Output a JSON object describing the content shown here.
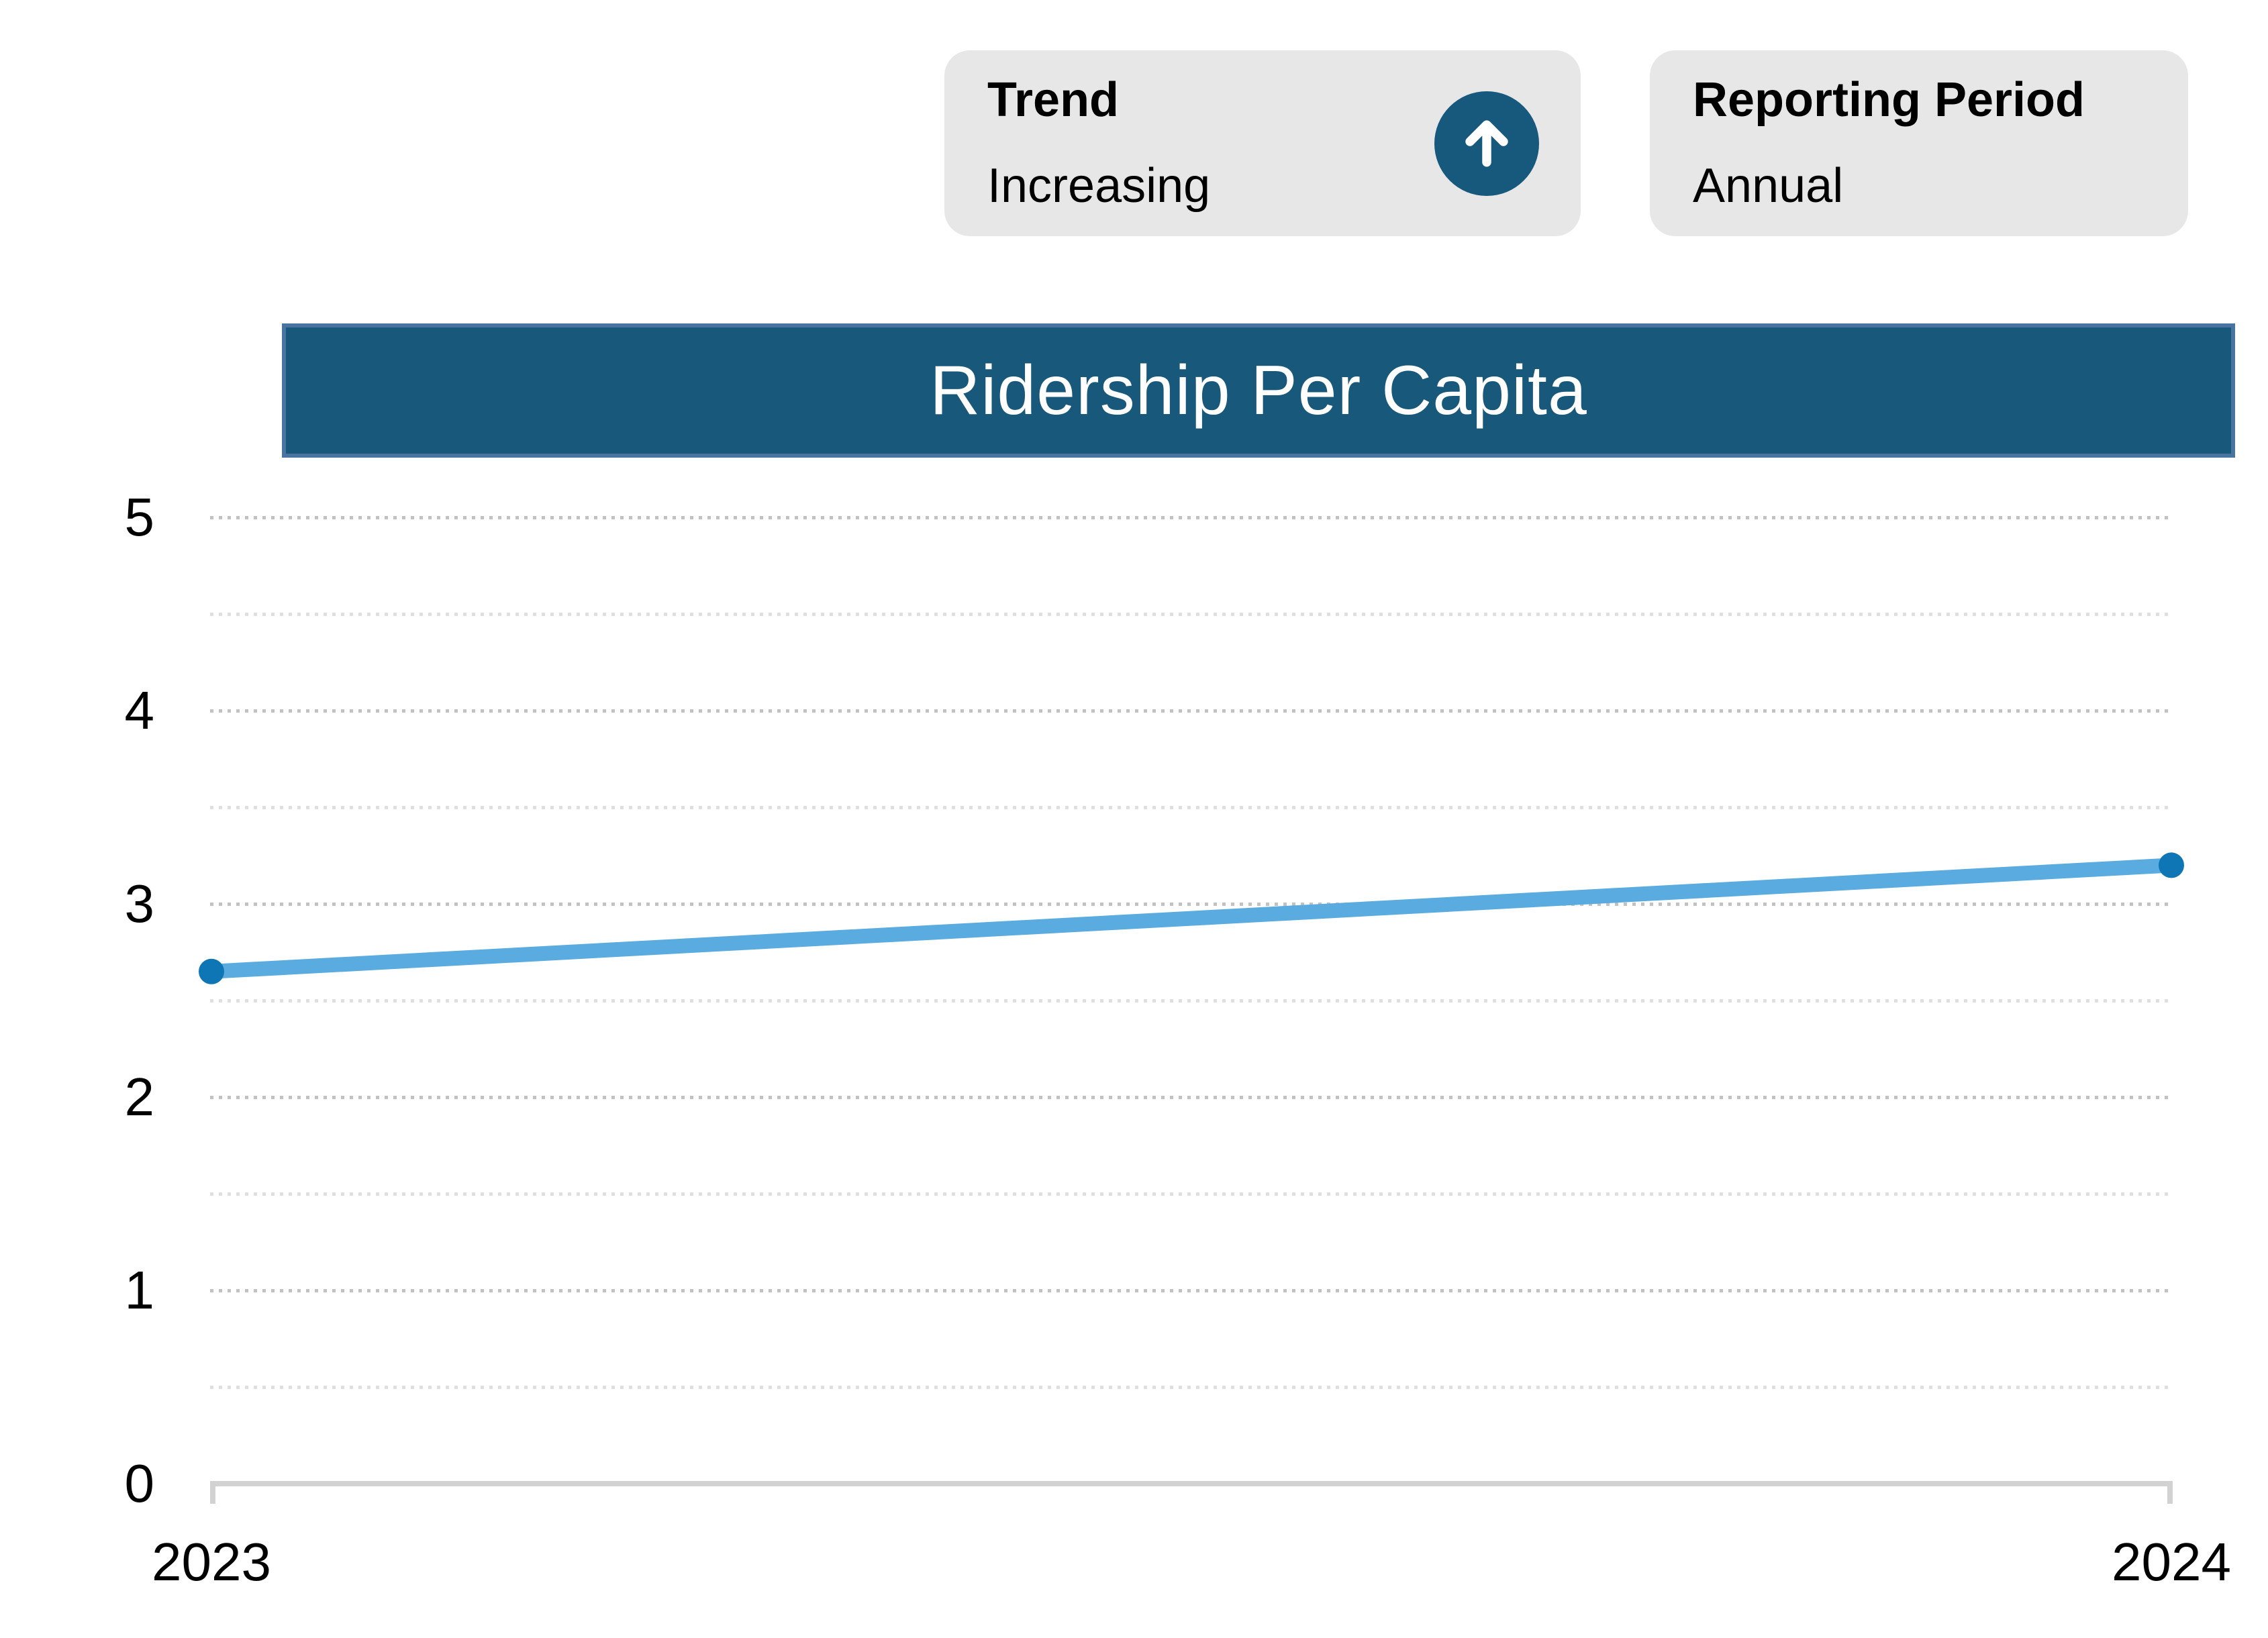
{
  "cards": {
    "trend": {
      "label": "Trend",
      "value": "Increasing",
      "icon": "arrow-up-icon"
    },
    "reporting_period": {
      "label": "Reporting Period",
      "value": "Annual"
    }
  },
  "chart_data": {
    "type": "line",
    "title": "Ridership Per Capita",
    "categories": [
      "2023",
      "2024"
    ],
    "values": [
      2.65,
      3.2
    ],
    "xlabel": "",
    "ylabel": "",
    "ylim": [
      0,
      5
    ],
    "yticks": [
      0,
      1,
      2,
      3,
      4,
      5
    ],
    "minor_gridline_step": 0.5,
    "grid": "dotted-horizontal",
    "legend": "none"
  },
  "colors": {
    "card_bg": "#e7e7e7",
    "icon_circle_bg": "#16597d",
    "icon_arrow": "#ffffff",
    "title_bar_bg": "#17587b",
    "title_bar_border": "#4a74a0",
    "title_text": "#ffffff",
    "major_gridline": "#c2c2c2",
    "minor_gridline": "#dfdfdf",
    "axis_line": "#d2d2d2",
    "line_color": "#5aabdf",
    "marker_color": "#0e76b4",
    "label_text": "#000000"
  }
}
